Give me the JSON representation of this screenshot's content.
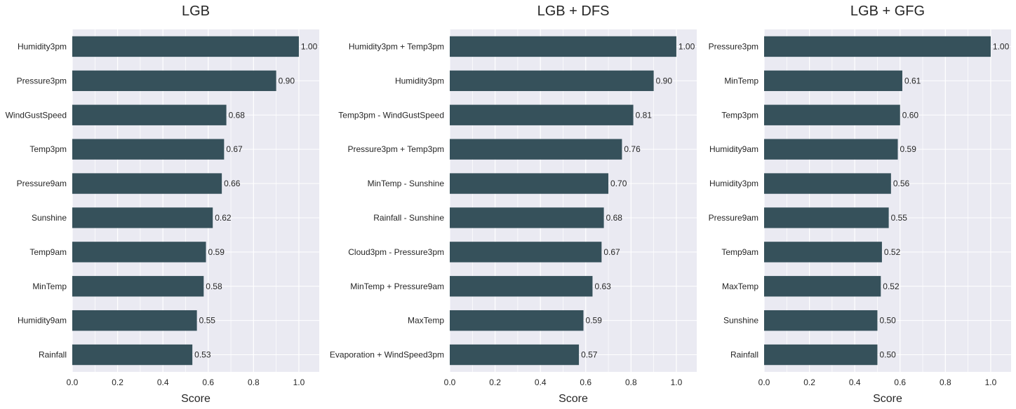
{
  "chart_data": [
    {
      "type": "bar",
      "orientation": "horizontal",
      "title": "LGB",
      "xlabel": "Score",
      "ylabel": "",
      "xlim": [
        0,
        1.09
      ],
      "xticks": [
        "0.0",
        "0.2",
        "0.4",
        "0.6",
        "0.8",
        "1.0"
      ],
      "grid": true,
      "color": "#36515b",
      "background": "#eaeaf2",
      "categories": [
        "Humidity3pm",
        "Pressure3pm",
        "WindGustSpeed",
        "Temp3pm",
        "Pressure9am",
        "Sunshine",
        "Temp9am",
        "MinTemp",
        "Humidity9am",
        "Rainfall"
      ],
      "values": [
        1.0,
        0.9,
        0.68,
        0.67,
        0.66,
        0.62,
        0.59,
        0.58,
        0.55,
        0.53
      ],
      "data_labels": [
        "1.00",
        "0.90",
        "0.68",
        "0.67",
        "0.66",
        "0.62",
        "0.59",
        "0.58",
        "0.55",
        "0.53"
      ]
    },
    {
      "type": "bar",
      "orientation": "horizontal",
      "title": "LGB + DFS",
      "xlabel": "Score",
      "ylabel": "",
      "xlim": [
        0,
        1.09
      ],
      "xticks": [
        "0.0",
        "0.2",
        "0.4",
        "0.6",
        "0.8",
        "1.0"
      ],
      "grid": true,
      "color": "#36515b",
      "background": "#eaeaf2",
      "categories": [
        "Humidity3pm + Temp3pm",
        "Humidity3pm",
        "Temp3pm - WindGustSpeed",
        "Pressure3pm + Temp3pm",
        "MinTemp - Sunshine",
        "Rainfall - Sunshine",
        "Cloud3pm - Pressure3pm",
        "MinTemp + Pressure9am",
        "MaxTemp",
        "Evaporation + WindSpeed3pm"
      ],
      "values": [
        1.0,
        0.9,
        0.81,
        0.76,
        0.7,
        0.68,
        0.67,
        0.63,
        0.59,
        0.57
      ],
      "data_labels": [
        "1.00",
        "0.90",
        "0.81",
        "0.76",
        "0.70",
        "0.68",
        "0.67",
        "0.63",
        "0.59",
        "0.57"
      ]
    },
    {
      "type": "bar",
      "orientation": "horizontal",
      "title": "LGB + GFG",
      "xlabel": "Score",
      "ylabel": "",
      "xlim": [
        0,
        1.09
      ],
      "xticks": [
        "0.0",
        "0.2",
        "0.4",
        "0.6",
        "0.8",
        "1.0"
      ],
      "grid": true,
      "color": "#36515b",
      "background": "#eaeaf2",
      "categories": [
        "Pressure3pm",
        "MinTemp",
        "Temp3pm",
        "Humidity9am",
        "Humidity3pm",
        "Pressure9am",
        "Temp9am",
        "MaxTemp",
        "Sunshine",
        "Rainfall"
      ],
      "values": [
        1.0,
        0.61,
        0.6,
        0.59,
        0.56,
        0.55,
        0.52,
        0.515,
        0.5,
        0.5
      ],
      "data_labels": [
        "1.00",
        "0.61",
        "0.60",
        "0.59",
        "0.56",
        "0.55",
        "0.52",
        "0.52",
        "0.50",
        "0.50"
      ]
    }
  ]
}
